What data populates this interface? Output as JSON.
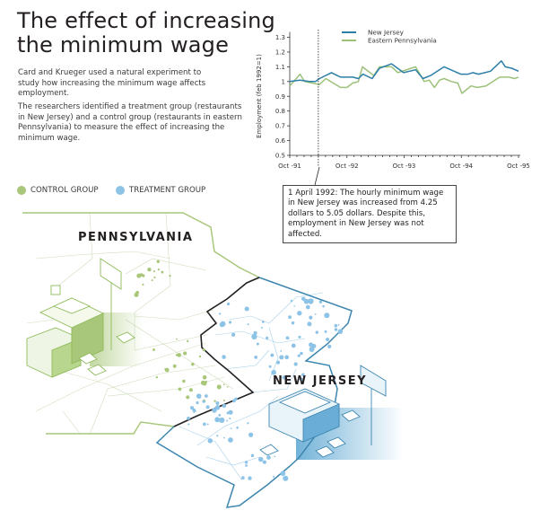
{
  "header": {
    "title_line1": "The effect of increasing",
    "title_line2": "the minimum wage",
    "intro": "Card and Krueger used a natural experiment to study how increasing the minimum wage affects employment.",
    "description": "The researchers identified a treatment group (restaurants in New Jersey) and a control group (restaurants in eastern Pennsylvania) to measure the effect of increasing the minimum wage."
  },
  "groups": {
    "control": {
      "label": "CONTROL GROUP",
      "color": "#a9c77a"
    },
    "treatment": {
      "label": "TREATMENT GROUP",
      "color": "#8cc3e6"
    }
  },
  "annotation": {
    "text": "1 April 1992: The hourly minimum wage in New Jersey was increased from 4.25 dollars to 5.05 dollars. Despite this, employment in New Jersey was not affected."
  },
  "map": {
    "pa_label": "PENNSYLVANIA",
    "nj_label": "NEW JERSEY"
  },
  "chart_data": {
    "type": "line",
    "title": "",
    "xlabel": "",
    "ylabel": "Employment (feb 1992=1)",
    "x_unit": "years since Oct 1991",
    "xlim": [
      0,
      4
    ],
    "ylim": [
      0.5,
      1.3
    ],
    "yticks": [
      "0.5",
      "0.6",
      "0.7",
      "0.8",
      "0.9",
      "1",
      "1.1",
      "1.2",
      "1.3"
    ],
    "xticks": [
      {
        "x": 0,
        "label": "Oct -91"
      },
      {
        "x": 1,
        "label": "Oct -92"
      },
      {
        "x": 2,
        "label": "Oct -93"
      },
      {
        "x": 3,
        "label": "Oct -94"
      },
      {
        "x": 4,
        "label": "Oct -95"
      }
    ],
    "event_line": {
      "x": 0.5,
      "label": "1 April 1992"
    },
    "legend_position": "top",
    "series": [
      {
        "name": "New Jersey",
        "color": "#2e7fa8",
        "x": [
          0,
          0.18,
          0.34,
          0.45,
          0.52,
          0.73,
          0.89,
          1.1,
          1.2,
          1.28,
          1.44,
          1.57,
          1.78,
          1.99,
          2.2,
          2.33,
          2.46,
          2.7,
          2.99,
          3.12,
          3.2,
          3.3,
          3.51,
          3.7,
          3.77,
          3.88,
          4
        ],
        "y": [
          1.0,
          1.01,
          1.0,
          1.0,
          1.02,
          1.06,
          1.03,
          1.03,
          1.02,
          1.05,
          1.02,
          1.09,
          1.12,
          1.06,
          1.08,
          1.02,
          1.04,
          1.1,
          1.05,
          1.05,
          1.06,
          1.05,
          1.07,
          1.14,
          1.1,
          1.09,
          1.07
        ]
      },
      {
        "name": "Eastern Pennsylvania",
        "color": "#9cc27a",
        "x": [
          0,
          0.18,
          0.26,
          0.52,
          0.63,
          0.76,
          0.89,
          1.0,
          1.1,
          1.2,
          1.27,
          1.47,
          1.57,
          1.78,
          1.89,
          2.2,
          2.35,
          2.44,
          2.53,
          2.62,
          2.7,
          2.83,
          2.94,
          3.01,
          3.17,
          3.28,
          3.43,
          3.67,
          3.83,
          3.93,
          4
        ],
        "y": [
          0.97,
          1.05,
          1.0,
          0.98,
          1.02,
          0.99,
          0.96,
          0.96,
          0.99,
          1.0,
          1.1,
          1.04,
          1.1,
          1.1,
          1.06,
          1.1,
          1.0,
          1.01,
          0.96,
          1.01,
          1.02,
          1.0,
          0.99,
          0.92,
          0.97,
          0.96,
          0.97,
          1.03,
          1.03,
          1.02,
          1.03
        ]
      }
    ]
  }
}
